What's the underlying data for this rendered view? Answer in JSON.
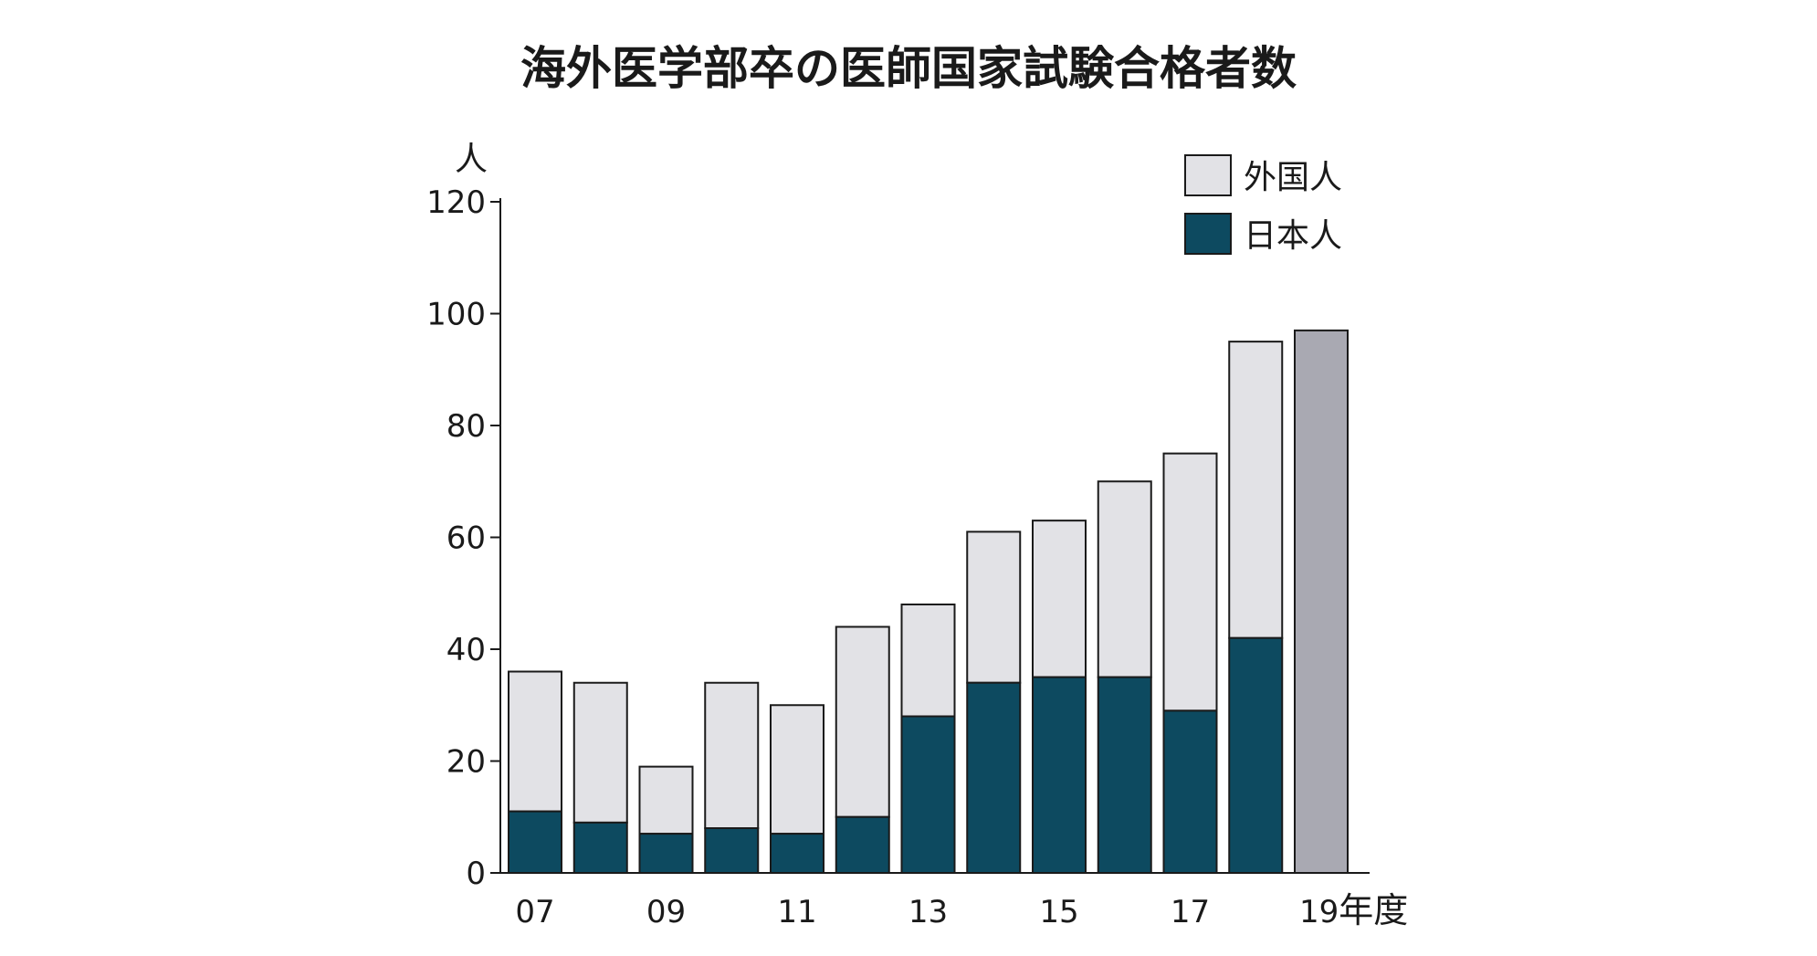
{
  "chart_data": {
    "type": "bar",
    "stacked": true,
    "title": "海外医学部卒の医師国家試験合格者数",
    "ylabel": "人",
    "xlabel": "",
    "ylim": [
      0,
      120
    ],
    "y_ticks": [
      0,
      20,
      40,
      60,
      80,
      100,
      120
    ],
    "categories": [
      "07",
      "08",
      "09",
      "10",
      "11",
      "12",
      "13",
      "14",
      "15",
      "16",
      "17",
      "18",
      "19"
    ],
    "x_tick_labels": [
      "07",
      "",
      "09",
      "",
      "11",
      "",
      "13",
      "",
      "15",
      "",
      "17",
      "",
      "19"
    ],
    "x_axis_suffix": "年度",
    "series": [
      {
        "name": "日本人",
        "color": "#0d4a60",
        "values": [
          11,
          9,
          7,
          8,
          7,
          10,
          28,
          34,
          35,
          35,
          29,
          42,
          null
        ]
      },
      {
        "name": "外国人",
        "color": "#e2e2e6",
        "values": [
          25,
          25,
          12,
          26,
          23,
          34,
          20,
          27,
          28,
          35,
          46,
          53,
          null
        ]
      }
    ],
    "totals_only": [
      {
        "category": "19",
        "value": 97,
        "color": "#a9a9b2"
      }
    ],
    "legend": {
      "position": "top-right",
      "order": [
        "外国人",
        "日本人"
      ]
    }
  }
}
